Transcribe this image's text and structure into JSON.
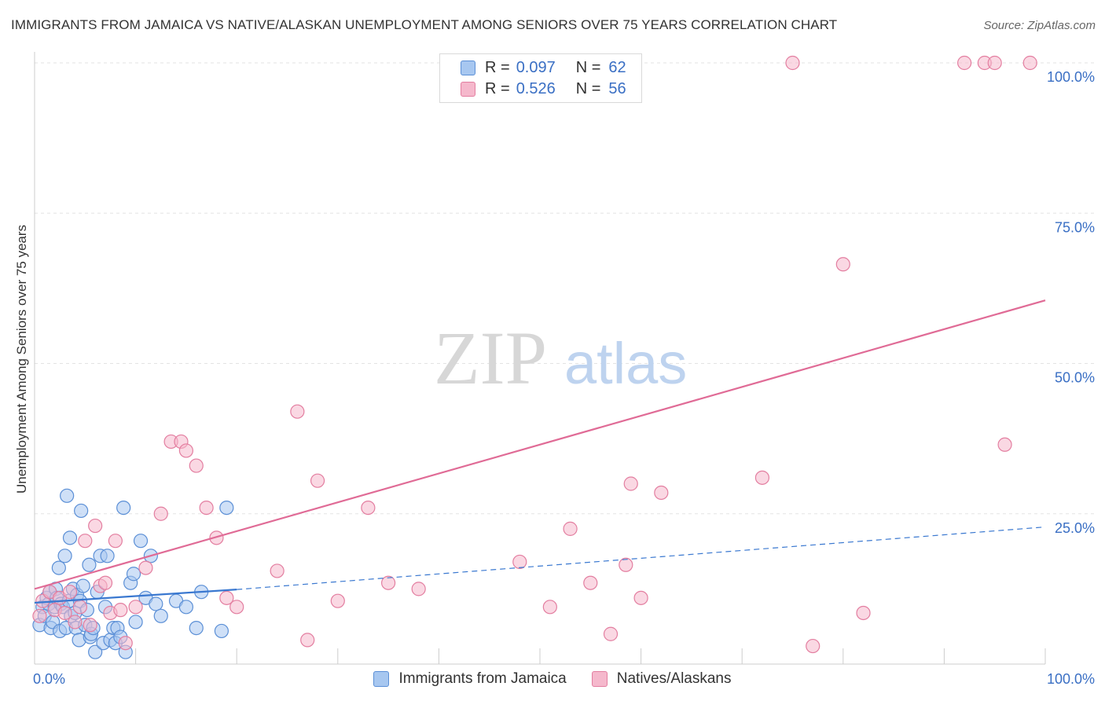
{
  "header": {
    "title": "IMMIGRANTS FROM JAMAICA VS NATIVE/ALASKAN UNEMPLOYMENT AMONG SENIORS OVER 75 YEARS CORRELATION CHART",
    "source": "Source: ZipAtlas.com"
  },
  "legend": {
    "r_label": "R =",
    "n_label": "N =",
    "series": [
      {
        "name": "Immigrants from Jamaica",
        "r": "0.097",
        "n": "62"
      },
      {
        "name": "Natives/Alaskans",
        "r": "0.526",
        "n": "56"
      }
    ]
  },
  "colors": {
    "blue_fill": "#a7c7f0",
    "blue_stroke": "#5b8fd6",
    "blue_line": "#3a78d0",
    "pink_fill": "#f5b8cc",
    "pink_stroke": "#e37ea0",
    "pink_line": "#e06b96",
    "tick_label": "#3a6fc4",
    "watermark_zip": "#d7d7d7",
    "watermark_atlas": "#bed3ef"
  },
  "watermark": {
    "zip": "ZIP",
    "atlas": "atlas"
  },
  "chart_data": {
    "type": "scatter",
    "title": "IMMIGRANTS FROM JAMAICA VS NATIVE/ALASKAN UNEMPLOYMENT AMONG SENIORS OVER 75 YEARS CORRELATION CHART",
    "xlabel": "",
    "ylabel": "Unemployment Among Seniors over 75 years",
    "xlim": [
      0,
      100
    ],
    "ylim": [
      0,
      100
    ],
    "x_tick_labels": [
      "0.0%",
      "100.0%"
    ],
    "y_ticks": [
      25,
      50,
      75,
      100
    ],
    "y_tick_labels": [
      "25.0%",
      "50.0%",
      "75.0%",
      "100.0%"
    ],
    "grid": true,
    "series": [
      {
        "name": "Immigrants from Jamaica",
        "x": [
          0.5,
          0.8,
          1.0,
          1.2,
          1.4,
          1.5,
          1.6,
          1.8,
          2.0,
          2.1,
          2.2,
          2.4,
          2.5,
          2.6,
          2.8,
          3.0,
          3.1,
          3.2,
          3.4,
          3.5,
          3.6,
          3.8,
          4.0,
          4.1,
          4.2,
          4.4,
          4.5,
          4.6,
          4.8,
          5.0,
          5.2,
          5.4,
          5.5,
          5.6,
          5.8,
          6.0,
          6.2,
          6.5,
          6.8,
          7.0,
          7.2,
          7.5,
          7.8,
          8.0,
          8.2,
          8.5,
          8.8,
          9.0,
          9.5,
          9.8,
          10.0,
          10.5,
          11.0,
          11.5,
          12.0,
          12.5,
          14.0,
          15.0,
          16.0,
          16.5,
          18.5,
          19.0
        ],
        "y": [
          6.5,
          9.5,
          8.0,
          11.0,
          10.0,
          12.0,
          6.0,
          7.0,
          9.5,
          12.5,
          11.0,
          16.0,
          5.5,
          10.0,
          9.5,
          18.0,
          6.0,
          28.0,
          10.5,
          21.0,
          8.0,
          12.5,
          8.5,
          6.0,
          11.5,
          4.0,
          10.5,
          25.5,
          13.0,
          6.5,
          9.0,
          16.5,
          4.5,
          5.0,
          6.0,
          2.0,
          12.0,
          18.0,
          3.5,
          9.5,
          18.0,
          4.0,
          6.0,
          3.5,
          6.0,
          4.5,
          26.0,
          2.0,
          13.5,
          15.0,
          7.0,
          20.5,
          11.0,
          18.0,
          10.0,
          8.0,
          10.5,
          9.5,
          6.0,
          12.0,
          5.5,
          26.0
        ],
        "trend": {
          "x": [
            0,
            20
          ],
          "y": [
            10.2,
            12.4
          ],
          "dashed_to": [
            100,
            22.8
          ]
        }
      },
      {
        "name": "Natives/Alaskans",
        "x": [
          0.5,
          0.8,
          1.5,
          2.0,
          2.5,
          3.0,
          3.5,
          4.0,
          4.5,
          5.0,
          5.5,
          6.0,
          6.5,
          7.0,
          7.5,
          8.0,
          8.5,
          9.0,
          10.0,
          11.0,
          12.5,
          13.5,
          14.5,
          15.0,
          16.0,
          17.0,
          18.0,
          19.0,
          20.0,
          24.0,
          26.0,
          27.0,
          28.0,
          30.0,
          33.0,
          35.0,
          38.0,
          48.0,
          51.0,
          53.0,
          55.0,
          57.0,
          58.5,
          59.0,
          60.0,
          62.0,
          72.0,
          75.0,
          77.0,
          80.0,
          82.0,
          92.0,
          94.0,
          95.0,
          96.0,
          98.5
        ],
        "y": [
          8.0,
          10.5,
          12.0,
          9.0,
          11.0,
          8.5,
          12.0,
          7.0,
          9.5,
          20.5,
          6.5,
          23.0,
          13.0,
          13.5,
          8.5,
          20.5,
          9.0,
          3.5,
          9.5,
          16.0,
          25.0,
          37.0,
          37.0,
          35.5,
          33.0,
          26.0,
          21.0,
          11.0,
          9.5,
          15.5,
          42.0,
          4.0,
          30.5,
          10.5,
          26.0,
          13.5,
          12.5,
          17.0,
          9.5,
          22.5,
          13.5,
          5.0,
          16.5,
          30.0,
          11.0,
          28.5,
          31.0,
          100.0,
          3.0,
          66.5,
          8.5,
          100.0,
          100.0,
          100.0,
          36.5,
          100.0
        ],
        "trend": {
          "x": [
            0,
            100
          ],
          "y": [
            12.5,
            60.5
          ]
        }
      }
    ]
  }
}
